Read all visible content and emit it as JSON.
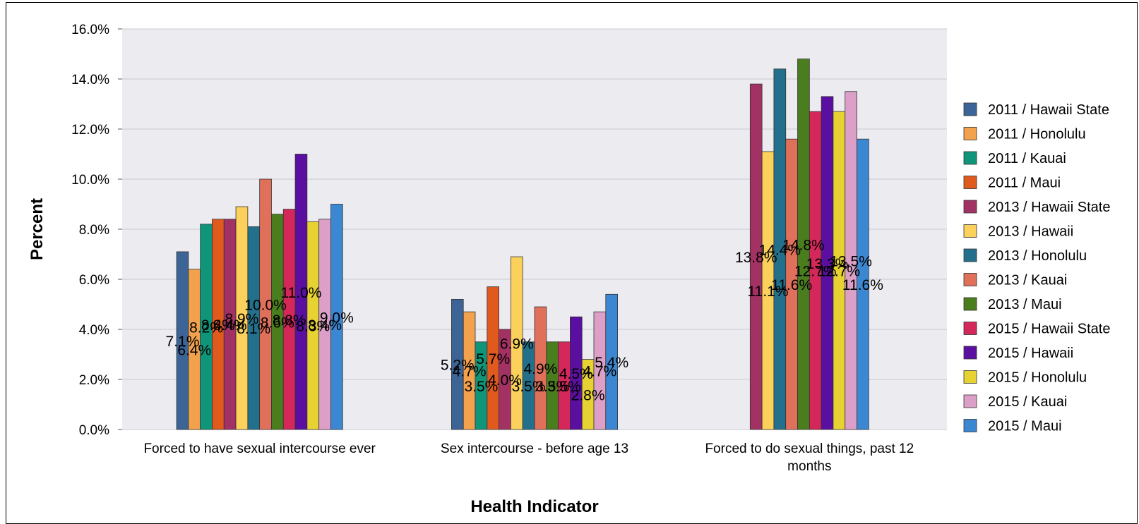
{
  "chart_data": {
    "type": "bar",
    "title": "",
    "xlabel": "Health Indicator",
    "ylabel": "Percent",
    "ylim": [
      0,
      16
    ],
    "yticks": [
      "0.0%",
      "2.0%",
      "4.0%",
      "6.0%",
      "8.0%",
      "10.0%",
      "12.0%",
      "14.0%",
      "16.0%"
    ],
    "grid": true,
    "legend_position": "right",
    "categories": [
      [
        "Forced to have sexual intercourse ever"
      ],
      [
        "Sex intercourse - before age 13"
      ],
      [
        "Forced to do sexual things, past 12",
        "months"
      ]
    ],
    "series": [
      {
        "name": "2011 / Hawaii State",
        "color": "#3c6496",
        "values": [
          7.1,
          5.2,
          null
        ],
        "labels": [
          "7.1%",
          "5.2%",
          ""
        ]
      },
      {
        "name": "2011 / Honolulu",
        "color": "#f2a14d",
        "values": [
          6.4,
          4.7,
          null
        ],
        "labels": [
          "6.4%",
          "4.7%",
          ""
        ]
      },
      {
        "name": "2011 / Kauai",
        "color": "#0f967a",
        "values": [
          8.2,
          3.5,
          null
        ],
        "labels": [
          "8.2%",
          "3.5%",
          ""
        ]
      },
      {
        "name": "2011 / Maui",
        "color": "#e05a1e",
        "values": [
          8.4,
          5.7,
          null
        ],
        "labels": [
          "8.4%",
          "5.7%",
          ""
        ]
      },
      {
        "name": "2013 / Hawaii State",
        "color": "#a33264",
        "values": [
          8.4,
          4.0,
          13.8
        ],
        "labels": [
          "8.4%",
          "4.0%",
          "13.8%"
        ]
      },
      {
        "name": "2013 / Hawaii",
        "color": "#fbd15b",
        "values": [
          8.9,
          6.9,
          11.1
        ],
        "labels": [
          "8.9%",
          "6.9%",
          "11.1%"
        ]
      },
      {
        "name": "2013 / Honolulu",
        "color": "#23708c",
        "values": [
          8.1,
          3.5,
          14.4
        ],
        "labels": [
          "8.1%",
          "3.5%",
          "14.4%"
        ]
      },
      {
        "name": "2013 / Kauai",
        "color": "#e0705a",
        "values": [
          10.0,
          4.9,
          11.6
        ],
        "labels": [
          "10.0%",
          "4.9%",
          "11.6%"
        ]
      },
      {
        "name": "2013 / Maui",
        "color": "#4a7d1e",
        "values": [
          8.6,
          3.5,
          14.8
        ],
        "labels": [
          "8.6%",
          "3.5%",
          "14.8%"
        ]
      },
      {
        "name": "2015 / Hawaii State",
        "color": "#d4285a",
        "values": [
          8.8,
          3.5,
          12.7
        ],
        "labels": [
          "8.8%",
          "3.5%",
          "12.7%"
        ]
      },
      {
        "name": "2015 / Hawaii",
        "color": "#5a0fa0",
        "values": [
          11.0,
          4.5,
          13.3
        ],
        "labels": [
          "11.0%",
          "4.5%",
          "13.3%"
        ]
      },
      {
        "name": "2015 / Honolulu",
        "color": "#e6d232",
        "values": [
          8.3,
          2.8,
          12.7
        ],
        "labels": [
          "8.3%",
          "2.8%",
          "12.7%"
        ]
      },
      {
        "name": "2015 / Kauai",
        "color": "#dca0c8",
        "values": [
          8.4,
          4.7,
          13.5
        ],
        "labels": [
          "8.4%",
          "4.7%",
          "13.5%"
        ]
      },
      {
        "name": "2015 / Maui",
        "color": "#3c87d2",
        "values": [
          9.0,
          5.4,
          11.6
        ],
        "labels": [
          "9.0%",
          "5.4%",
          "11.6%"
        ]
      }
    ]
  }
}
